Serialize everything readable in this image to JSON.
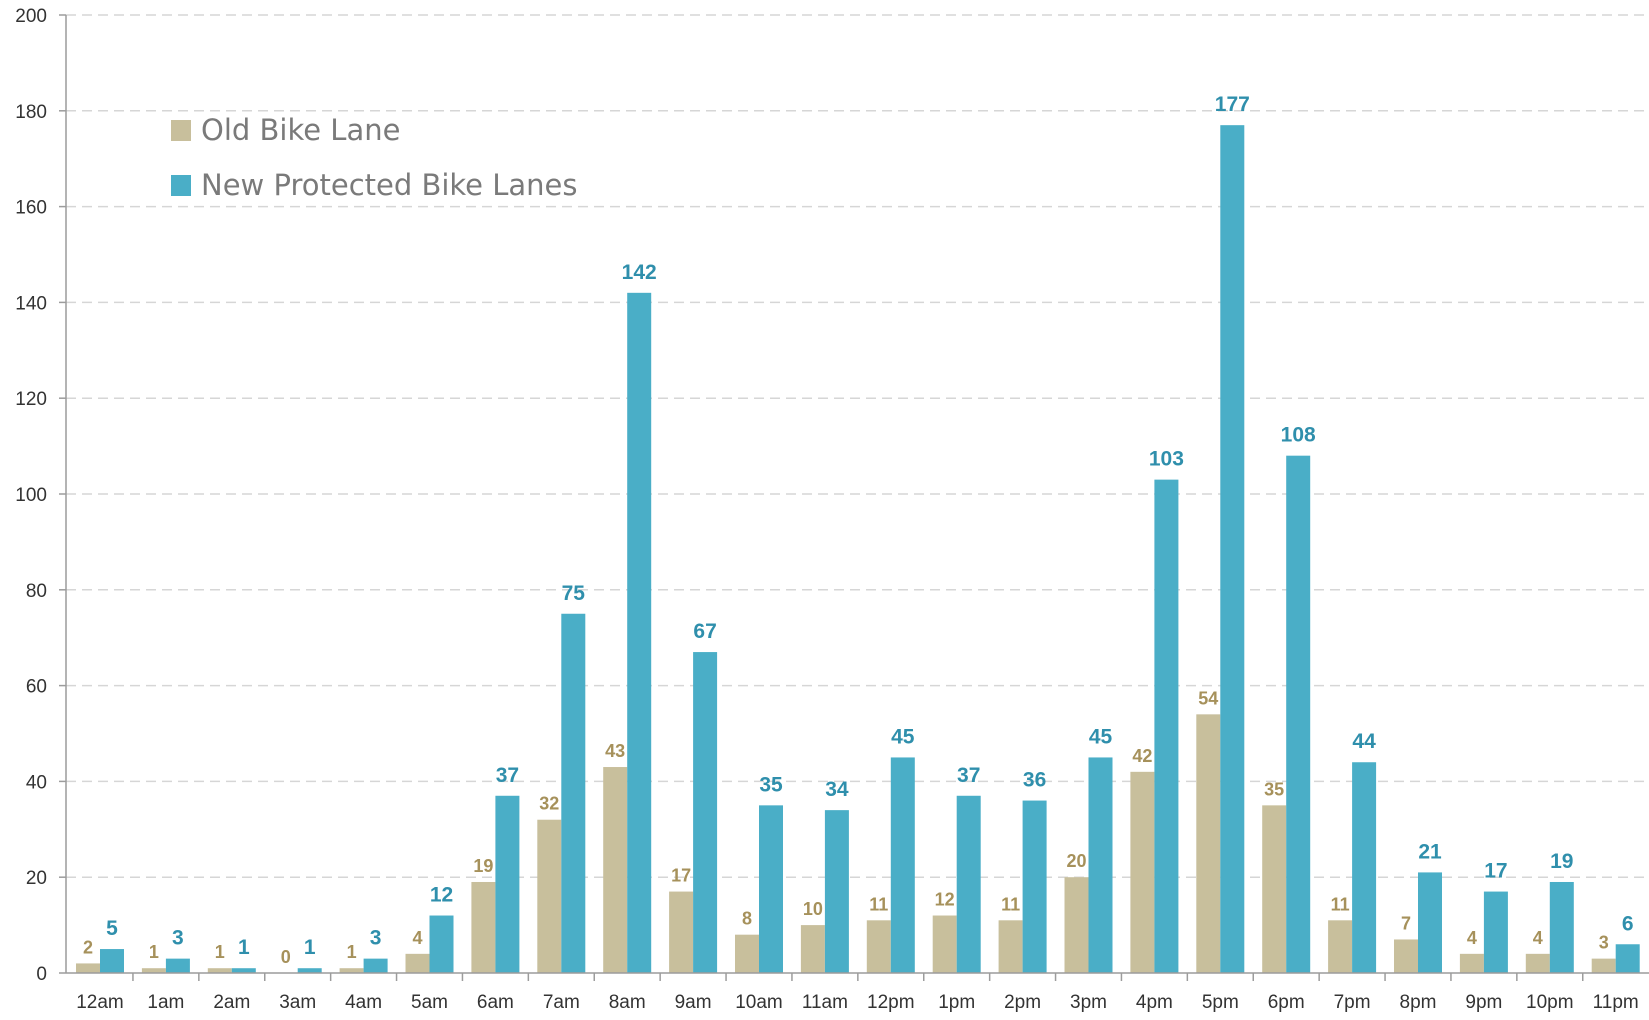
{
  "colors": {
    "old": "#c8bf9c",
    "new": "#4aaec7",
    "old_label": "#a6915b",
    "new_label": "#2f8fac",
    "axis": "#9c9c9c",
    "grid": "#d6d6d6",
    "tick_text": "#333333",
    "legend_text": "#7a7a7a"
  },
  "chart_data": {
    "type": "bar",
    "title": "",
    "xlabel": "",
    "ylabel": "",
    "ylim": [
      0,
      200
    ],
    "yticks": [
      0,
      20,
      40,
      60,
      80,
      100,
      120,
      140,
      160,
      180,
      200
    ],
    "grid": true,
    "legend_position": "top-left",
    "categories": [
      "12am",
      "1am",
      "2am",
      "3am",
      "4am",
      "5am",
      "6am",
      "7am",
      "8am",
      "9am",
      "10am",
      "11am",
      "12pm",
      "1pm",
      "2pm",
      "3pm",
      "4pm",
      "5pm",
      "6pm",
      "7pm",
      "8pm",
      "9pm",
      "10pm",
      "11pm"
    ],
    "series": [
      {
        "name": "Old Bike Lane",
        "values": [
          2,
          1,
          1,
          0,
          1,
          4,
          19,
          32,
          43,
          17,
          8,
          10,
          11,
          12,
          11,
          20,
          42,
          54,
          35,
          11,
          7,
          4,
          4,
          3
        ]
      },
      {
        "name": "New Protected Bike Lanes",
        "values": [
          5,
          3,
          1,
          1,
          3,
          12,
          37,
          75,
          142,
          67,
          35,
          34,
          45,
          37,
          36,
          45,
          103,
          177,
          108,
          44,
          21,
          17,
          19,
          6
        ]
      }
    ]
  }
}
